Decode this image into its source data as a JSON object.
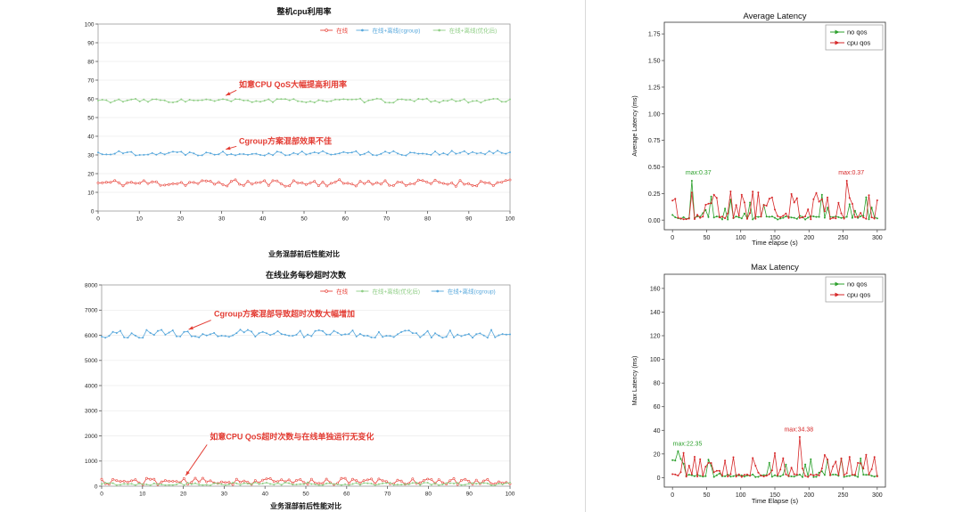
{
  "page": {
    "background": "#ffffff",
    "divider_color": "#d9d9d9"
  },
  "chart_data": [
    {
      "id": "cpu_util",
      "type": "line",
      "title": "整机cpu利用率",
      "xlabel": "业务混部前后性能对比",
      "ylabel": "",
      "xlim": [
        0,
        100
      ],
      "ylim": [
        0,
        100
      ],
      "xticks": [
        0,
        10,
        20,
        30,
        40,
        50,
        60,
        70,
        80,
        90,
        100
      ],
      "yticks": [
        0,
        10,
        20,
        30,
        40,
        50,
        60,
        70,
        80,
        90,
        100
      ],
      "grid": true,
      "legend_style": "inline",
      "series": [
        {
          "id": "online",
          "name": "在线",
          "color": "#e8453c",
          "marker": "open",
          "approx_level": "~15% (range 12-17)",
          "gen": {
            "kind": "noisy",
            "n": 100,
            "x0": 0,
            "x1": 100,
            "mean": 15,
            "amplitude": 1.8,
            "min": 11,
            "seed": 11
          }
        },
        {
          "id": "online-offline-cgroup",
          "name": "在线+离线(cgroup)",
          "color": "#58a8dc",
          "marker": "dot",
          "approx_level": "~31% (range 29-33)",
          "gen": {
            "kind": "noisy",
            "n": 100,
            "x0": 0,
            "x1": 100,
            "mean": 31,
            "amplitude": 1.3,
            "min": 28,
            "seed": 22
          }
        },
        {
          "id": "online-offline-optimized",
          "name": "在线+离线(优化后)",
          "color": "#8fce85",
          "marker": "dot",
          "approx_level": "~59% (range 57-60)",
          "gen": {
            "kind": "noisy",
            "n": 100,
            "x0": 0,
            "x1": 100,
            "mean": 59,
            "amplitude": 1.1,
            "min": 56,
            "seed": 33
          }
        }
      ],
      "annotations": [
        {
          "text": "如意CPU QoS大幅提高利用率",
          "color": "#e33c33",
          "x": 34.2,
          "y": 66.3,
          "anchor": "start",
          "arrow": {
            "from": [
              33.6,
              64.6
            ],
            "to": [
              31.0,
              61.8
            ]
          }
        },
        {
          "text": "Cgroup方案混部效果不佳",
          "color": "#e33c33",
          "x": 34.2,
          "y": 36.0,
          "anchor": "start",
          "arrow": {
            "from": [
              33.6,
              34.6
            ],
            "to": [
              31.0,
              33.0
            ]
          }
        }
      ]
    },
    {
      "id": "timeout",
      "type": "line",
      "title": "在线业务每秒超时次数",
      "xlabel": "业务混部前后性能对比",
      "ylabel": "",
      "xlim": [
        0,
        100
      ],
      "ylim": [
        0,
        8000
      ],
      "xticks": [
        0,
        10,
        20,
        30,
        40,
        50,
        60,
        70,
        80,
        90,
        100
      ],
      "yticks": [
        0,
        1000,
        2000,
        3000,
        4000,
        5000,
        6000,
        7000,
        8000
      ],
      "grid": true,
      "legend_style": "inline",
      "series": [
        {
          "id": "online",
          "name": "在线",
          "color": "#e8453c",
          "marker": "open",
          "approx_level": "~100-320 timeouts/s",
          "gen": {
            "kind": "noisy",
            "n": 110,
            "x0": 0,
            "x1": 100,
            "mean": 190,
            "amplitude": 130,
            "min": 40,
            "seed": 44
          }
        },
        {
          "id": "online-offline-optimized",
          "name": "在线+离线(优化后)",
          "color": "#8fce85",
          "marker": "dot",
          "approx_level": "~30-150 timeouts/s",
          "gen": {
            "kind": "noisy",
            "n": 110,
            "x0": 0,
            "x1": 100,
            "mean": 90,
            "amplitude": 60,
            "min": 15,
            "seed": 55
          }
        },
        {
          "id": "online-offline-cgroup",
          "name": "在线+离线(cgroup)",
          "color": "#58a8dc",
          "marker": "dot",
          "approx_level": "~5900-6250 timeouts/s",
          "gen": {
            "kind": "noisy",
            "n": 110,
            "x0": 0,
            "x1": 100,
            "mean": 6060,
            "amplitude": 160,
            "min": 5850,
            "seed": 66
          }
        }
      ],
      "annotations": [
        {
          "text": "Cgroup方案混部导致超时次数大幅增加",
          "color": "#e33c33",
          "x": 27.5,
          "y": 6750,
          "anchor": "start",
          "arrow": {
            "from": [
              26.8,
              6600
            ],
            "to": [
              21.3,
              6230
            ]
          }
        },
        {
          "text": "如意CPU QoS超时次数与在线单独运行无变化",
          "color": "#e33c33",
          "x": 26.5,
          "y": 1850,
          "anchor": "start",
          "arrow": {
            "from": [
              25.8,
              1650
            ],
            "to": [
              20.6,
              420
            ]
          }
        }
      ]
    },
    {
      "id": "avg_latency",
      "type": "line",
      "title": "Average Latency",
      "xlabel": "Time elapse (s)",
      "ylabel": "Average Latency (ms)",
      "xlim": [
        -12,
        312
      ],
      "ylim": [
        -0.09,
        1.86
      ],
      "xticks": [
        0,
        50,
        100,
        150,
        200,
        250,
        300
      ],
      "yticks": [
        0,
        0.25,
        0.5,
        0.75,
        1,
        1.25,
        1.5,
        1.75
      ],
      "ydec": 2,
      "grid": false,
      "legend_style": "box",
      "series": [
        {
          "id": "no-qos",
          "name": "no qos",
          "color": "#2ca02c",
          "marker": "dot",
          "approx_level": "mostly <0.1 ms with bursts to ~0.3",
          "max_point": {
            "x": 30,
            "y": 0.37
          },
          "gen": {
            "kind": "spiky",
            "n": 75,
            "x0": 0,
            "x1": 300,
            "base": 0.03,
            "spike_prob": 0.2,
            "spike_scale": 0.24,
            "max": 0.37,
            "max_at": 30,
            "seed": 7
          }
        },
        {
          "id": "cpu-qos",
          "name": "cpu qos",
          "color": "#d62728",
          "marker": "dot",
          "approx_level": "mostly <0.1 ms with frequent bursts to ~0.3",
          "max_point": {
            "x": 255,
            "y": 0.37
          },
          "gen": {
            "kind": "spiky",
            "n": 75,
            "x0": 0,
            "x1": 300,
            "base": 0.035,
            "spike_prob": 0.42,
            "spike_scale": 0.27,
            "max": 0.37,
            "max_at": 255,
            "seed": 8
          }
        }
      ],
      "annotations": [
        {
          "text": "max:0.37",
          "color": "#2ca02c",
          "x": 38,
          "y": 0.43,
          "anchor": "middle"
        },
        {
          "text": "max:0.37",
          "color": "#d62728",
          "x": 262,
          "y": 0.43,
          "anchor": "middle"
        }
      ]
    },
    {
      "id": "max_latency",
      "type": "line",
      "title": "Max Latency",
      "xlabel": "Time Elapse (s)",
      "ylabel": "Max Latency (ms)",
      "xlim": [
        -12,
        312
      ],
      "ylim": [
        -8,
        172
      ],
      "xticks": [
        0,
        50,
        100,
        150,
        200,
        250,
        300
      ],
      "yticks": [
        0,
        20,
        40,
        60,
        80,
        100,
        120,
        140,
        160
      ],
      "grid": false,
      "legend_style": "box",
      "series": [
        {
          "id": "no-qos",
          "name": "no qos",
          "color": "#2ca02c",
          "marker": "dot",
          "approx_level": "mostly <10 ms with bursts to ~20",
          "max_point": {
            "x": 10,
            "y": 22.35
          },
          "gen": {
            "kind": "spiky",
            "n": 75,
            "x0": 0,
            "x1": 300,
            "base": 2.2,
            "spike_prob": 0.28,
            "spike_scale": 17,
            "max": 22.35,
            "max_at": 10,
            "seed": 9
          }
        },
        {
          "id": "cpu-qos",
          "name": "cpu qos",
          "color": "#d62728",
          "marker": "dot",
          "approx_level": "mostly <10 ms with bursts to ~25",
          "max_point": {
            "x": 185,
            "y": 34.38
          },
          "gen": {
            "kind": "spiky",
            "n": 75,
            "x0": 0,
            "x1": 300,
            "base": 2.6,
            "spike_prob": 0.42,
            "spike_scale": 21,
            "max": 34.38,
            "max_at": 185,
            "seed": 10
          }
        }
      ],
      "annotations": [
        {
          "text": "max:22.35",
          "color": "#2ca02c",
          "x": 22,
          "y": 27,
          "anchor": "middle"
        },
        {
          "text": "max:34.38",
          "color": "#d62728",
          "x": 185,
          "y": 39,
          "anchor": "middle"
        }
      ]
    }
  ]
}
